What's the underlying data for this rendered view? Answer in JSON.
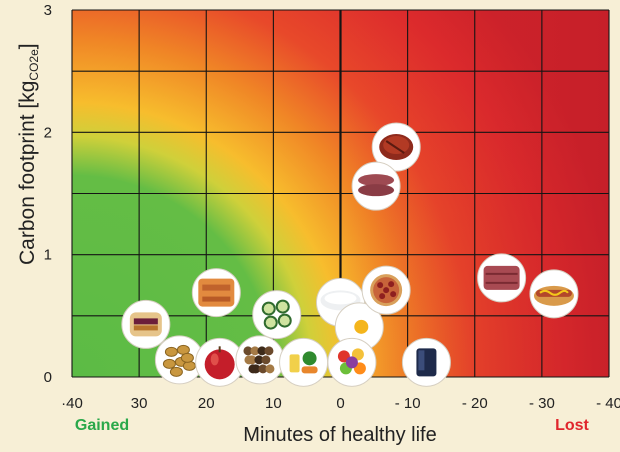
{
  "chart_data": {
    "type": "scatter",
    "title": "",
    "xlabel": "Minutes of healthy life",
    "ylabel_main": "Carbon footprint [kg",
    "ylabel_sub": "CO2e",
    "ylabel_close": "]",
    "xlim": [
      40,
      -40
    ],
    "ylim": [
      0,
      3
    ],
    "x_ticks": [
      40,
      30,
      20,
      10,
      0,
      -10,
      -20,
      -30,
      -40
    ],
    "x_tick_labels": [
      "·40",
      "30",
      "20",
      "10",
      "0",
      "- 10",
      "- 20",
      "- 30",
      "- 40"
    ],
    "y_ticks": [
      0,
      1,
      2,
      3
    ],
    "y_tick_labels": [
      "0",
      "1",
      "2",
      "3"
    ],
    "grid": true,
    "background": "green-to-red gradient: green for health gained with low footprint, red for health lost",
    "annotations": [
      {
        "text": "Gained",
        "color": "#2aa84a",
        "side": "left"
      },
      {
        "text": "Lost",
        "color": "#e0262c",
        "side": "right"
      }
    ],
    "points": [
      {
        "name": "peanut-butter-jelly-sandwich",
        "x": 29,
        "y": 0.43
      },
      {
        "name": "peanuts",
        "x": 24,
        "y": 0.14
      },
      {
        "name": "apple",
        "x": 18,
        "y": 0.12
      },
      {
        "name": "baked-salmon",
        "x": 18.5,
        "y": 0.69
      },
      {
        "name": "mixed-nuts",
        "x": 12,
        "y": 0.14
      },
      {
        "name": "cucumber-slices",
        "x": 9.5,
        "y": 0.51
      },
      {
        "name": "vegetable-medley",
        "x": 5.5,
        "y": 0.12
      },
      {
        "name": "bowl-of-milk",
        "x": 0,
        "y": 0.61
      },
      {
        "name": "egg",
        "x": -2.8,
        "y": 0.41
      },
      {
        "name": "fruit-salad",
        "x": -1.7,
        "y": 0.12
      },
      {
        "name": "pepperoni-pizza",
        "x": -6.8,
        "y": 0.71
      },
      {
        "name": "soda",
        "x": -12.8,
        "y": 0.12
      },
      {
        "name": "grilled-steak",
        "x": -8.3,
        "y": 1.88
      },
      {
        "name": "raw-beef-slices",
        "x": -5.3,
        "y": 1.56
      },
      {
        "name": "processed-meat",
        "x": -24,
        "y": 0.81
      },
      {
        "name": "hot-dog",
        "x": -31.8,
        "y": 0.68
      }
    ]
  }
}
